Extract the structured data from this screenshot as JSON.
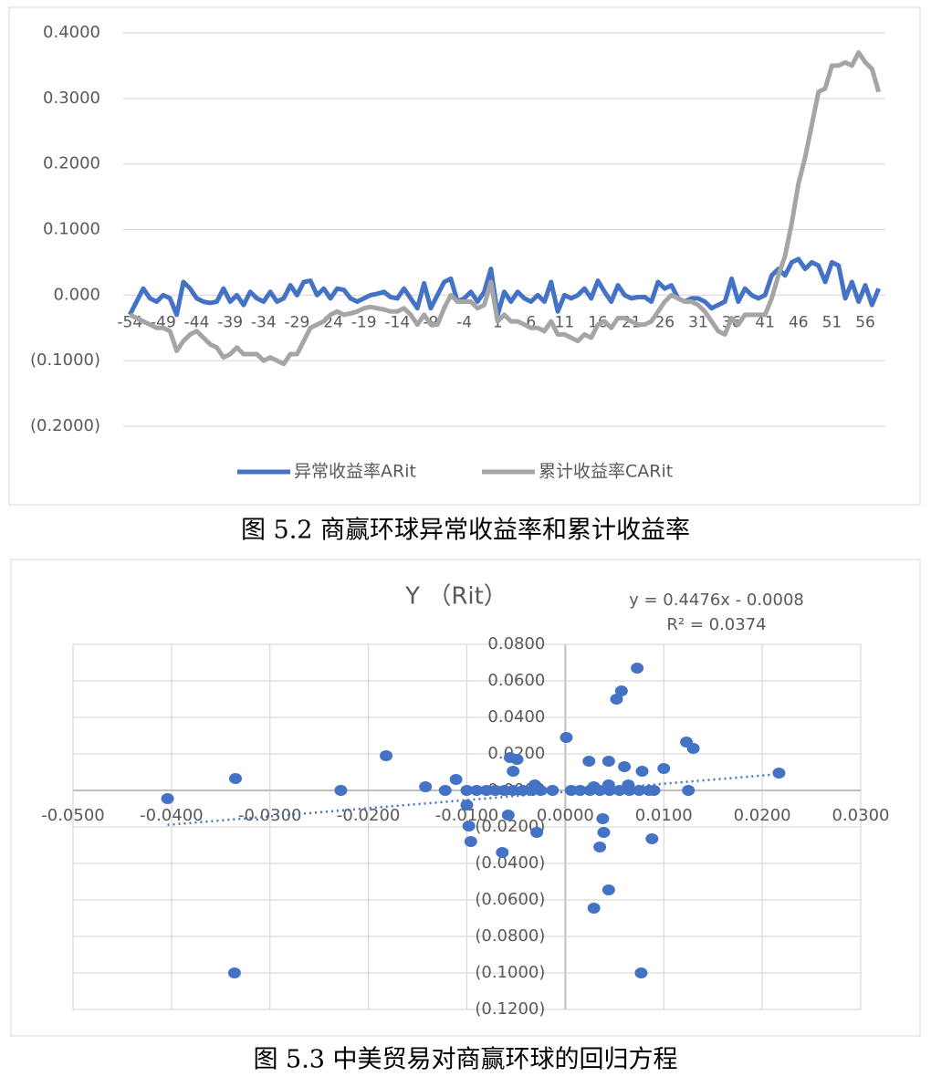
{
  "chart_data": [
    {
      "type": "line",
      "caption": "图 5.2 商赢环球异常收益率和累计收益率",
      "x": [
        -54,
        -53,
        -52,
        -51,
        -50,
        -49,
        -48,
        -47,
        -46,
        -45,
        -44,
        -43,
        -42,
        -41,
        -40,
        -39,
        -38,
        -37,
        -36,
        -35,
        -34,
        -33,
        -32,
        -31,
        -30,
        -29,
        -28,
        -27,
        -26,
        -25,
        -24,
        -23,
        -22,
        -21,
        -20,
        -19,
        -18,
        -17,
        -16,
        -15,
        -14,
        -13,
        -12,
        -11,
        -10,
        -9,
        -8,
        -7,
        -6,
        -5,
        -4,
        -3,
        -2,
        -1,
        0,
        1,
        2,
        3,
        4,
        5,
        6,
        7,
        8,
        9,
        10,
        11,
        12,
        13,
        14,
        15,
        16,
        17,
        18,
        19,
        20,
        21,
        22,
        23,
        24,
        25,
        26,
        27,
        28,
        29,
        30,
        31,
        32,
        33,
        34,
        35,
        36,
        37,
        38,
        39,
        40,
        41,
        42,
        43,
        44,
        45,
        46,
        47,
        48,
        49,
        50,
        51,
        52,
        53,
        54,
        55,
        56,
        57,
        58
      ],
      "series": [
        {
          "name": "异常收益率ARit",
          "color": "#4472c4",
          "values": [
            -0.03,
            -0.01,
            0.01,
            -0.005,
            -0.01,
            0.0,
            -0.005,
            -0.03,
            0.02,
            0.01,
            -0.005,
            -0.01,
            -0.012,
            -0.01,
            0.01,
            -0.01,
            0.0,
            -0.015,
            0.005,
            -0.005,
            -0.01,
            0.005,
            -0.01,
            -0.005,
            0.015,
            0.0,
            0.02,
            0.022,
            0.0,
            0.01,
            -0.005,
            0.01,
            0.008,
            -0.005,
            -0.01,
            -0.005,
            0.0,
            0.002,
            0.005,
            -0.003,
            -0.005,
            0.01,
            -0.005,
            -0.02,
            0.018,
            -0.02,
            0.0,
            0.02,
            0.025,
            -0.01,
            -0.005,
            0.005,
            -0.01,
            0.005,
            0.04,
            -0.03,
            0.005,
            -0.01,
            0.005,
            -0.005,
            -0.01,
            0.0,
            -0.01,
            0.02,
            -0.025,
            0.0,
            -0.005,
            0.0,
            0.01,
            -0.005,
            0.022,
            0.005,
            -0.01,
            0.015,
            0.0,
            -0.005,
            -0.003,
            -0.003,
            -0.01,
            0.02,
            0.01,
            0.015,
            -0.005,
            -0.01,
            -0.005,
            -0.005,
            -0.01,
            -0.02,
            -0.015,
            -0.01,
            0.025,
            -0.01,
            0.01,
            0.0,
            -0.005,
            0.0,
            0.03,
            0.04,
            0.03,
            0.05,
            0.055,
            0.04,
            0.05,
            0.045,
            0.02,
            0.05,
            0.045,
            -0.005,
            0.02,
            -0.01,
            0.015,
            -0.015,
            0.01
          ]
        },
        {
          "name": "累计收益率CARit",
          "color": "#a5a5a5",
          "values": [
            -0.03,
            -0.035,
            -0.04,
            -0.045,
            -0.05,
            -0.05,
            -0.055,
            -0.085,
            -0.07,
            -0.06,
            -0.055,
            -0.065,
            -0.075,
            -0.08,
            -0.095,
            -0.09,
            -0.08,
            -0.09,
            -0.09,
            -0.09,
            -0.1,
            -0.095,
            -0.1,
            -0.105,
            -0.09,
            -0.09,
            -0.07,
            -0.05,
            -0.045,
            -0.04,
            -0.03,
            -0.025,
            -0.03,
            -0.028,
            -0.025,
            -0.02,
            -0.018,
            -0.02,
            -0.022,
            -0.025,
            -0.025,
            -0.02,
            -0.03,
            -0.045,
            -0.03,
            -0.045,
            -0.045,
            -0.02,
            0.0,
            -0.01,
            -0.01,
            -0.01,
            -0.02,
            -0.015,
            0.02,
            -0.04,
            -0.03,
            -0.04,
            -0.04,
            -0.045,
            -0.05,
            -0.05,
            -0.055,
            -0.04,
            -0.06,
            -0.06,
            -0.065,
            -0.07,
            -0.06,
            -0.065,
            -0.045,
            -0.04,
            -0.05,
            -0.035,
            -0.035,
            -0.04,
            -0.045,
            -0.045,
            -0.04,
            -0.025,
            -0.01,
            0.0,
            -0.005,
            -0.01,
            -0.01,
            -0.015,
            -0.025,
            -0.04,
            -0.055,
            -0.06,
            -0.035,
            -0.045,
            -0.03,
            -0.03,
            -0.03,
            -0.03,
            -0.005,
            0.03,
            0.06,
            0.11,
            0.17,
            0.21,
            0.26,
            0.31,
            0.315,
            0.35,
            0.35,
            0.355,
            0.35,
            0.37,
            0.355,
            0.345,
            0.31
          ]
        }
      ],
      "xlim": [
        -55,
        59
      ],
      "xticks": [
        -54,
        -49,
        -44,
        -39,
        -34,
        -29,
        -24,
        -19,
        -14,
        -9,
        -4,
        1,
        6,
        11,
        16,
        21,
        26,
        31,
        36,
        41,
        46,
        51,
        56
      ],
      "ylim": [
        -0.2,
        0.4
      ],
      "yticks": [
        {
          "value": 0.4,
          "label": "0.4000"
        },
        {
          "value": 0.3,
          "label": "0.3000"
        },
        {
          "value": 0.2,
          "label": "0.2000"
        },
        {
          "value": 0.1,
          "label": "0.1000"
        },
        {
          "value": 0,
          "label": "0.000"
        },
        {
          "value": -0.1,
          "label": "(0.1000)"
        },
        {
          "value": -0.2,
          "label": "(0.2000)"
        }
      ],
      "negative_tick_color": "#e00000",
      "grid": true,
      "legend": "bottom"
    },
    {
      "type": "scatter",
      "caption": "图 5.3 中美贸易对商赢环球的回归方程",
      "title": "Y （Rit）",
      "annotations": [
        "y = 0.4476x - 0.0008",
        "R² = 0.0374"
      ],
      "trendline": {
        "slope": 0.4476,
        "intercept": -0.0008,
        "color": "#4472c4"
      },
      "color": "#4472c4",
      "x": [
        -0.0404,
        -0.0335,
        -0.0228,
        -0.0182,
        -0.0142,
        -0.0122,
        -0.0111,
        -0.01,
        -0.01,
        -0.0098,
        -0.0096,
        -0.009,
        -0.008,
        -0.0071,
        -0.0062,
        -0.0053,
        -0.0043,
        -0.0034,
        -0.0025,
        -0.0013,
        -0.0064,
        -0.0058,
        -0.0056,
        -0.0053,
        -0.0049,
        -0.0029,
        -0.0031,
        0.0001,
        0.0024,
        0.0029,
        0.0035,
        0.0038,
        0.0039,
        0.0044,
        0.0044,
        0.0052,
        0.0057,
        0.006,
        0.0073,
        0.0078,
        0.0077,
        0.0088,
        0.01,
        0.0123,
        0.013,
        0.0125,
        0.0217,
        -0.0336,
        0.0006,
        0.0015,
        0.0025,
        0.0035,
        0.0045,
        0.0055,
        0.0065,
        0.0075,
        0.0085,
        0.009,
        0.0029,
        0.0044,
        0.0064
      ],
      "values": [
        -0.0045,
        0.0065,
        0.0,
        0.019,
        0.002,
        0.0,
        0.006,
        0.0,
        -0.008,
        -0.0195,
        -0.028,
        0.0,
        0.0,
        0.0,
        0.0,
        0.0,
        0.0,
        0.0,
        0.0,
        0.0,
        -0.034,
        -0.0135,
        0.018,
        0.0105,
        0.017,
        -0.023,
        0.003,
        0.029,
        0.016,
        -0.0645,
        -0.031,
        -0.0155,
        -0.023,
        -0.0545,
        0.016,
        0.05,
        0.0545,
        0.013,
        0.067,
        0.0105,
        -0.1,
        -0.0265,
        0.012,
        0.0265,
        0.023,
        0.0,
        0.0095,
        -0.1,
        0.0,
        0.0,
        0.0,
        0.0,
        0.0,
        0.0,
        0.0,
        0.0,
        0.0,
        0.0,
        0.002,
        0.003,
        0.003
      ],
      "xlim": [
        -0.05,
        0.03
      ],
      "xticks": [
        {
          "value": -0.05,
          "label": "-0.0500"
        },
        {
          "value": -0.04,
          "label": "-0.0400"
        },
        {
          "value": -0.03,
          "label": "-0.0300"
        },
        {
          "value": -0.02,
          "label": "-0.0200"
        },
        {
          "value": -0.01,
          "label": "-0.0100"
        },
        {
          "value": 0,
          "label": "0.0000"
        },
        {
          "value": 0.01,
          "label": "0.0100"
        },
        {
          "value": 0.02,
          "label": "0.0200"
        },
        {
          "value": 0.03,
          "label": "0.0300"
        }
      ],
      "ylim": [
        -0.12,
        0.08
      ],
      "yticks": [
        {
          "value": 0.08,
          "label": "0.0800"
        },
        {
          "value": 0.06,
          "label": "0.0600"
        },
        {
          "value": 0.04,
          "label": "0.0400"
        },
        {
          "value": 0.02,
          "label": "0.0200"
        },
        {
          "value": 0,
          "label": "0.0000"
        },
        {
          "value": -0.02,
          "label": "(0.0200)"
        },
        {
          "value": -0.04,
          "label": "(0.0400)"
        },
        {
          "value": -0.06,
          "label": "(0.0600)"
        },
        {
          "value": -0.08,
          "label": "(0.0800)"
        },
        {
          "value": -0.1,
          "label": "(0.1000)"
        },
        {
          "value": -0.12,
          "label": "(0.1200)"
        }
      ],
      "negative_tick_color": "#e00000",
      "grid": true
    }
  ]
}
